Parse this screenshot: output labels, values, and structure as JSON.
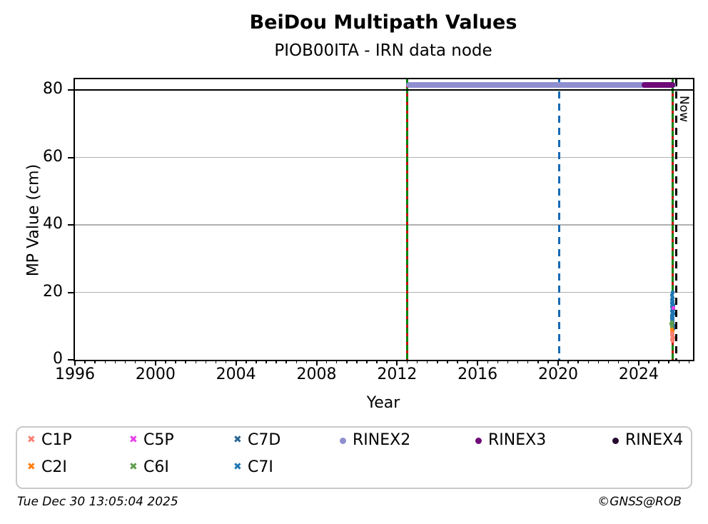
{
  "title": "BeiDou Multipath Values",
  "subtitle": "PIOB00ITA - IRN data node",
  "footer": {
    "timestamp": "Tue Dec 30 13:05:04 2025",
    "credit": "©GNSS@ROB"
  },
  "chart_data": {
    "type": "scatter",
    "title": "BeiDou Multipath Values",
    "subtitle": "PIOB00ITA - IRN data node",
    "xlabel": "Year",
    "ylabel": "MP Value (cm)",
    "xlim": [
      1996,
      2026.7
    ],
    "ylim": [
      0,
      83.2
    ],
    "x_major_ticks": [
      1996,
      2000,
      2004,
      2008,
      2012,
      2016,
      2020,
      2024
    ],
    "x_minor_step": 0.5,
    "y_major_ticks": [
      0,
      20,
      40,
      60,
      80
    ],
    "grid": "horizontal",
    "grid_color": "#b0b0b0",
    "axis_color": "#000000",
    "threshold_line": {
      "y": 80,
      "color": "#000000"
    },
    "availability_bars": [
      {
        "name": "RINEX2",
        "start": 2012.45,
        "end": 2025.85,
        "y": 81.5,
        "color": "#8f8fd0"
      },
      {
        "name": "RINEX3",
        "start": 2024.15,
        "end": 2025.8,
        "y": 81.5,
        "color": "#6f0a78"
      }
    ],
    "vlines": [
      {
        "name": "first-obs-line",
        "x": 2012.5,
        "style": "green-red-dashed",
        "colors": [
          "#008000",
          "#cc0000"
        ],
        "label": ""
      },
      {
        "name": "rinex3-line",
        "x": 2020.05,
        "style": "dashed",
        "colors": [
          "#1569b5"
        ],
        "label": ""
      },
      {
        "name": "last-obs-line",
        "x": 2025.68,
        "style": "green-red-dashed",
        "colors": [
          "#008000",
          "#cc0000"
        ],
        "label": ""
      },
      {
        "name": "now-line",
        "x": 2025.87,
        "style": "dashed",
        "colors": [
          "#000000"
        ],
        "label": "Now"
      }
    ],
    "series": [
      {
        "name": "C7I",
        "color": "#1f77b4",
        "marker": "x",
        "points": [
          [
            2025.68,
            20.0
          ],
          [
            2025.66,
            19.1
          ],
          [
            2025.7,
            18.4
          ],
          [
            2025.67,
            17.8
          ],
          [
            2025.7,
            17.3
          ],
          [
            2025.65,
            16.9
          ],
          [
            2025.69,
            16.5
          ],
          [
            2025.72,
            16.1
          ],
          [
            2025.64,
            15.7
          ],
          [
            2025.68,
            15.3
          ],
          [
            2025.71,
            14.9
          ],
          [
            2025.65,
            14.5
          ],
          [
            2025.69,
            14.1
          ],
          [
            2025.72,
            13.7
          ],
          [
            2025.64,
            13.3
          ],
          [
            2025.67,
            12.9
          ],
          [
            2025.7,
            12.5
          ],
          [
            2025.65,
            12.1
          ],
          [
            2025.69,
            11.7
          ],
          [
            2025.67,
            11.3
          ],
          [
            2025.7,
            10.9
          ],
          [
            2025.66,
            10.5
          ],
          [
            2025.69,
            10.1
          ],
          [
            2025.67,
            9.7
          ],
          [
            2025.7,
            9.3
          ],
          [
            2025.68,
            8.8
          ]
        ]
      },
      {
        "name": "C7D",
        "color": "#2a6593",
        "marker": "x",
        "points": [
          [
            2025.7,
            10.6
          ],
          [
            2025.72,
            10.1
          ],
          [
            2025.69,
            9.6
          ],
          [
            2025.71,
            9.2
          ]
        ]
      },
      {
        "name": "C6I",
        "color": "#5f9e4f",
        "marker": "x",
        "points": [
          [
            2025.64,
            11.2
          ],
          [
            2025.63,
            10.6
          ],
          [
            2025.65,
            10.1
          ],
          [
            2025.64,
            9.6
          ]
        ]
      },
      {
        "name": "C2I",
        "color": "#ff7f0e",
        "marker": "x",
        "points": [
          [
            2025.66,
            9.1
          ],
          [
            2025.69,
            8.6
          ],
          [
            2025.64,
            8.2
          ]
        ]
      },
      {
        "name": "C5P",
        "color": "#e83de8",
        "marker": "x",
        "points": [
          [
            2025.72,
            15.4
          ]
        ]
      },
      {
        "name": "C1P",
        "color": "#fa8072",
        "marker": "x",
        "points": [
          [
            2025.67,
            8.0
          ],
          [
            2025.7,
            7.6
          ],
          [
            2025.65,
            7.2
          ],
          [
            2025.68,
            6.8
          ],
          [
            2025.71,
            6.5
          ],
          [
            2025.66,
            6.1
          ],
          [
            2025.68,
            5.7
          ],
          [
            2025.69,
            7.3
          ]
        ]
      }
    ],
    "legend": [
      {
        "label": "C1P",
        "color": "#fa8072",
        "marker": "x",
        "row": 0,
        "col": 0
      },
      {
        "label": "C5P",
        "color": "#e83de8",
        "marker": "x",
        "row": 0,
        "col": 1
      },
      {
        "label": "C7D",
        "color": "#2a6593",
        "marker": "x",
        "row": 0,
        "col": 2
      },
      {
        "label": "RINEX2",
        "color": "#8f8fd0",
        "marker": "circle",
        "row": 0,
        "col": 3
      },
      {
        "label": "RINEX3",
        "color": "#6f0a78",
        "marker": "circle",
        "row": 0,
        "col": 4
      },
      {
        "label": "RINEX4",
        "color": "#260a2e",
        "marker": "circle",
        "row": 0,
        "col": 5
      },
      {
        "label": "C2I",
        "color": "#ff7f0e",
        "marker": "x",
        "row": 1,
        "col": 0
      },
      {
        "label": "C6I",
        "color": "#5f9e4f",
        "marker": "x",
        "row": 1,
        "col": 1
      },
      {
        "label": "C7I",
        "color": "#1f77b4",
        "marker": "x",
        "row": 1,
        "col": 2
      }
    ],
    "legend_position": "bottom"
  }
}
